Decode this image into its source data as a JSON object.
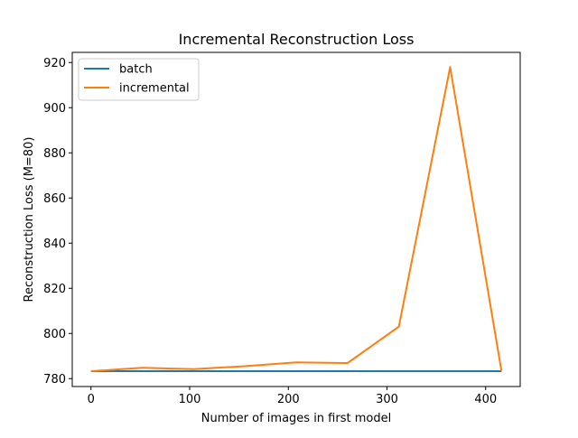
{
  "chart_data": {
    "type": "line",
    "title": "Incremental Reconstruction Loss",
    "xlabel": "Number of images in first model",
    "ylabel": "Reconstruction Loss (M=80)",
    "xlim": [
      -19,
      435
    ],
    "ylim": [
      776.5,
      924.5
    ],
    "xticks": [
      0,
      100,
      200,
      300,
      400
    ],
    "yticks": [
      780,
      800,
      820,
      840,
      860,
      880,
      900,
      920
    ],
    "grid": false,
    "legend_position": "top-left",
    "series": [
      {
        "name": "batch",
        "color": "#1f77b4",
        "x": [
          0,
          52,
          104,
          156,
          208,
          260,
          312,
          364,
          416
        ],
        "y": [
          783.3,
          783.3,
          783.3,
          783.3,
          783.3,
          783.3,
          783.3,
          783.3,
          783.3
        ]
      },
      {
        "name": "incremental",
        "color": "#ff7f0e",
        "x": [
          0,
          52,
          104,
          156,
          208,
          260,
          312,
          364,
          416
        ],
        "y": [
          783.3,
          784.8,
          784.2,
          785.5,
          787.2,
          786.9,
          803.0,
          918.0,
          783.5
        ]
      }
    ]
  }
}
